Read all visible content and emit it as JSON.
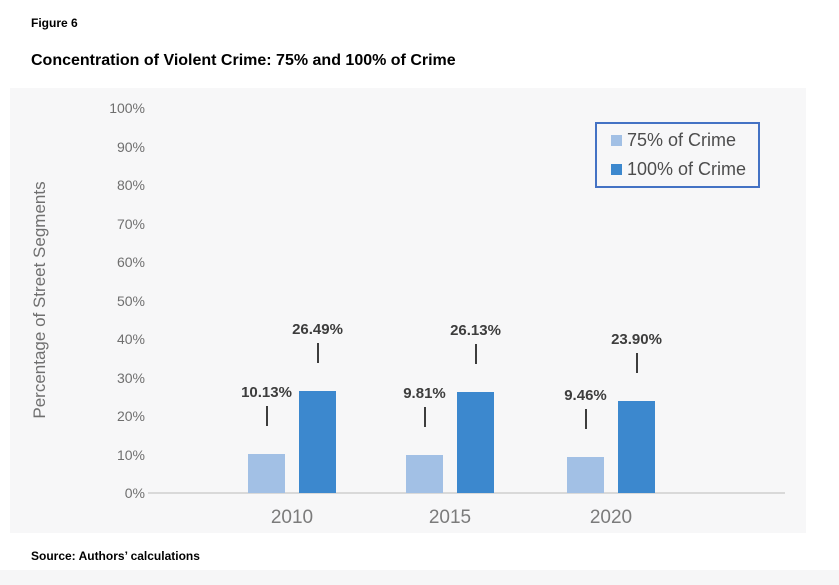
{
  "figure_label": "Figure 6",
  "title": "Concentration of Violent Crime: 75% and 100% of Crime",
  "source": "Source: Authors’ calculations",
  "chart_data": {
    "type": "bar",
    "title": "Concentration of Violent Crime: 75% and 100% of Crime",
    "categories": [
      "2010",
      "2015",
      "2020"
    ],
    "series": [
      {
        "name": "75% of Crime",
        "color": "#a2c0e5",
        "values": [
          10.13,
          9.81,
          9.46
        ],
        "value_labels": [
          "10.13%",
          "9.81%",
          "9.46%"
        ]
      },
      {
        "name": "100% of Crime",
        "color": "#3c88ce",
        "values": [
          26.49,
          26.13,
          23.9
        ],
        "value_labels": [
          "26.49%",
          "26.13%",
          "23.90%"
        ]
      }
    ],
    "xlabel": "",
    "ylabel": "Percentage of Street Segments",
    "ylim": [
      0,
      100
    ],
    "ytick_step": 10,
    "yticks": [
      "0%",
      "10%",
      "20%",
      "30%",
      "40%",
      "50%",
      "60%",
      "70%",
      "80%",
      "90%",
      "100%"
    ],
    "grid": false,
    "legend_position": "top-right",
    "legend_border_color": "#4472c4",
    "callout_line_color": "#3d3d3d",
    "axis_line_color": "#d9d9d9"
  }
}
